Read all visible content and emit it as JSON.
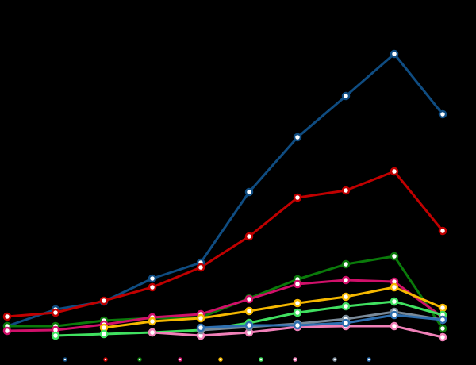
{
  "chart_data": {
    "type": "line",
    "categories": [
      null,
      null,
      null,
      null,
      null,
      null,
      null,
      null,
      null,
      null
    ],
    "ylim": [
      0,
      460
    ],
    "series": [
      {
        "color": "#0f4c81",
        "values": [
          49,
          70,
          80,
          109,
          129,
          218,
          287,
          339,
          392,
          316
        ]
      },
      {
        "color": "#c00000",
        "values": [
          61,
          66,
          81,
          98,
          123,
          162,
          211,
          220,
          244,
          169
        ]
      },
      {
        "color": "#0a7a0a",
        "values": [
          49,
          49,
          56,
          59,
          60,
          84,
          108,
          127,
          137,
          46
        ]
      },
      {
        "color": "#d0106a",
        "values": [
          43,
          44,
          51,
          60,
          64,
          83,
          102,
          107,
          105,
          60
        ]
      },
      {
        "color": "#f5b800",
        "values": [
          null,
          null,
          47,
          55,
          59,
          68,
          78,
          86,
          98,
          72
        ]
      },
      {
        "color": "#40e060",
        "values": [
          null,
          37,
          39,
          41,
          44,
          53,
          66,
          74,
          80,
          63
        ]
      },
      {
        "color": "#f080b8",
        "values": [
          null,
          null,
          null,
          41,
          37,
          41,
          48,
          49,
          49,
          35
        ]
      },
      {
        "color": "#7a8a99",
        "values": [
          null,
          null,
          null,
          null,
          44,
          48,
          52,
          58,
          67,
          57
        ]
      },
      {
        "color": "#2e6fb0",
        "values": [
          null,
          null,
          null,
          null,
          47,
          50,
          50,
          53,
          63,
          57
        ]
      }
    ]
  }
}
